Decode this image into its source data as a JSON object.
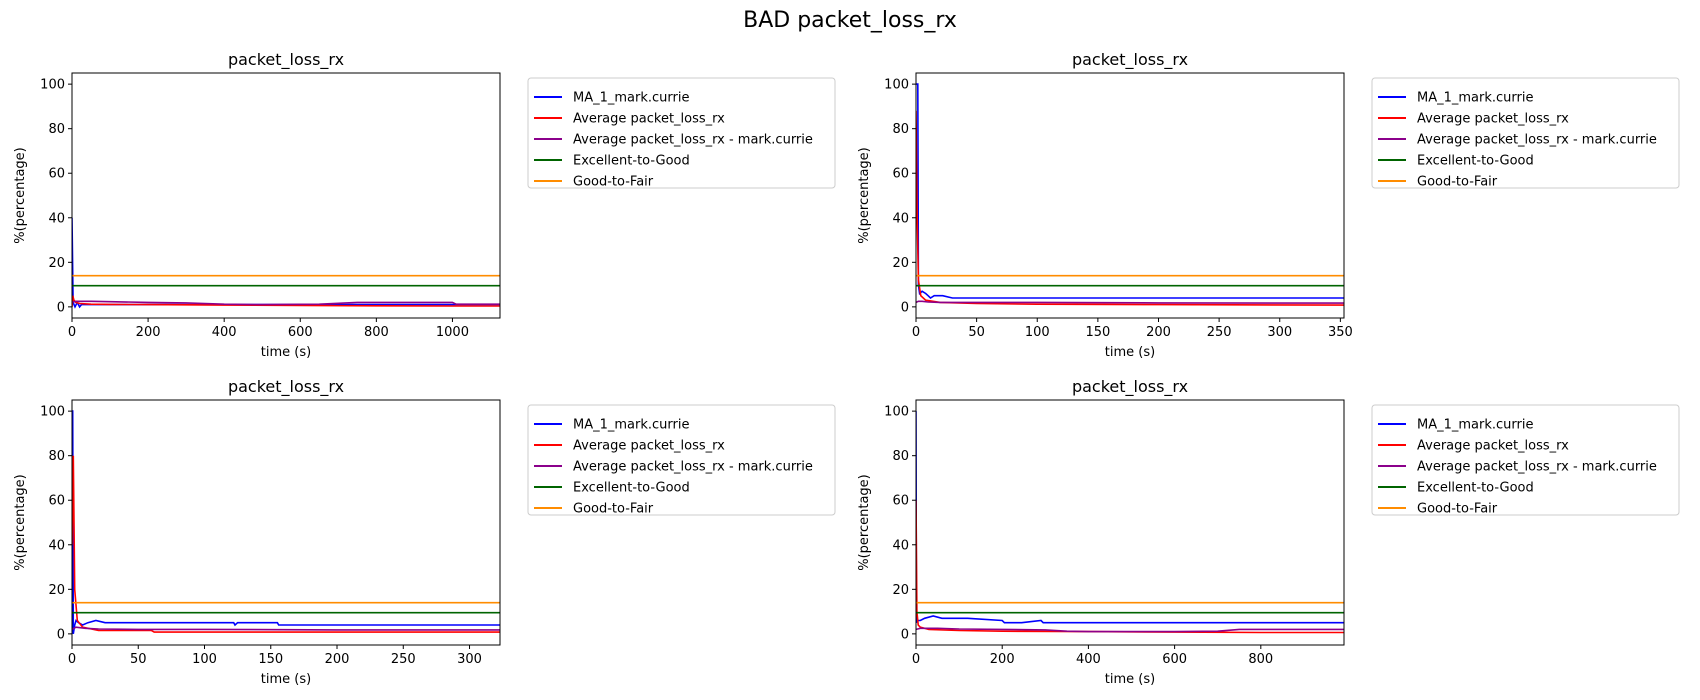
{
  "suptitle": "BAD packet_loss_rx",
  "colors": {
    "ma": "#0000ff",
    "avg": "#ff0000",
    "avg_user": "#8b008b",
    "excellent_good": "#006400",
    "good_fair": "#ff8c00"
  },
  "chart_data": [
    {
      "type": "line",
      "title": "packet_loss_rx",
      "xlabel": "time (s)",
      "ylabel": "%(percentage)",
      "xlim": [
        0,
        1125
      ],
      "ylim": [
        -5,
        105
      ],
      "xticks": [
        0,
        200,
        400,
        600,
        800,
        1000
      ],
      "yticks": [
        0,
        20,
        40,
        60,
        80,
        100
      ],
      "grid": false,
      "legend_position": "outside-right",
      "series": [
        {
          "name": "MA_1_mark.currie",
          "color_key": "ma",
          "x": [
            0,
            3,
            8,
            14,
            20,
            25,
            30,
            1125
          ],
          "y": [
            40,
            2,
            0,
            2,
            0,
            1,
            1,
            1
          ]
        },
        {
          "name": "Average packet_loss_rx",
          "color_key": "avg",
          "x": [
            0,
            2,
            5,
            10,
            20,
            50,
            100,
            200,
            400,
            600,
            800,
            1000,
            1125
          ],
          "y": [
            0,
            5,
            3,
            2,
            1.5,
            1.2,
            1.1,
            1.0,
            0.8,
            0.6,
            0.5,
            0.4,
            0.4
          ]
        },
        {
          "name": "Average packet_loss_rx - mark.currie",
          "color_key": "avg_user",
          "x": [
            0,
            10,
            50,
            100,
            200,
            300,
            350,
            400,
            500,
            650,
            700,
            750,
            800,
            1000,
            1010,
            1125
          ],
          "y": [
            2,
            2.5,
            2.5,
            2.3,
            2.0,
            1.8,
            1.5,
            1.2,
            1.0,
            1.2,
            1.6,
            2.0,
            2.0,
            2.0,
            1.2,
            1.2
          ]
        },
        {
          "name": "Excellent-to-Good",
          "color_key": "excellent_good",
          "x": [
            0,
            1125
          ],
          "y": [
            9.5,
            9.5
          ]
        },
        {
          "name": "Good-to-Fair",
          "color_key": "good_fair",
          "x": [
            0,
            1125
          ],
          "y": [
            14,
            14
          ]
        }
      ]
    },
    {
      "type": "line",
      "title": "packet_loss_rx",
      "xlabel": "time (s)",
      "ylabel": "%(percentage)",
      "xlim": [
        0,
        353
      ],
      "ylim": [
        -5,
        105
      ],
      "xticks": [
        0,
        50,
        100,
        150,
        200,
        250,
        300,
        350
      ],
      "yticks": [
        0,
        20,
        40,
        60,
        80,
        100
      ],
      "grid": false,
      "legend_position": "outside-right",
      "series": [
        {
          "name": "MA_1_mark.currie",
          "color_key": "ma",
          "x": [
            0,
            0.5,
            1.5,
            2,
            3,
            5,
            8,
            10,
            12,
            15,
            20,
            22,
            30,
            353
          ],
          "y": [
            100,
            100,
            100,
            10,
            6,
            7,
            6,
            5,
            4,
            5,
            5,
            5,
            4,
            4
          ]
        },
        {
          "name": "Average packet_loss_rx",
          "color_key": "avg",
          "x": [
            0,
            1,
            2,
            4,
            8,
            20,
            50,
            100,
            200,
            353
          ],
          "y": [
            88,
            40,
            12,
            5,
            3,
            2,
            1.5,
            1.2,
            1.0,
            0.8
          ]
        },
        {
          "name": "Average packet_loss_rx - mark.currie",
          "color_key": "avg_user",
          "x": [
            0,
            2,
            5,
            10,
            20,
            50,
            100,
            200,
            353
          ],
          "y": [
            2,
            2.5,
            2.5,
            2.2,
            2.0,
            2.0,
            2.0,
            1.8,
            1.7
          ]
        },
        {
          "name": "Excellent-to-Good",
          "color_key": "excellent_good",
          "x": [
            0,
            353
          ],
          "y": [
            9.5,
            9.5
          ]
        },
        {
          "name": "Good-to-Fair",
          "color_key": "good_fair",
          "x": [
            0,
            353
          ],
          "y": [
            14,
            14
          ]
        }
      ]
    },
    {
      "type": "line",
      "title": "packet_loss_rx",
      "xlabel": "time (s)",
      "ylabel": "%(percentage)",
      "xlim": [
        0,
        323
      ],
      "ylim": [
        -5,
        105
      ],
      "xticks": [
        0,
        50,
        100,
        150,
        200,
        250,
        300
      ],
      "yticks": [
        0,
        20,
        40,
        60,
        80,
        100
      ],
      "grid": false,
      "legend_position": "outside-right",
      "series": [
        {
          "name": "MA_1_mark.currie",
          "color_key": "ma",
          "x": [
            0,
            0.5,
            1,
            2,
            3,
            5,
            8,
            12,
            18,
            25,
            122,
            123,
            125,
            155,
            156,
            323
          ],
          "y": [
            100,
            100,
            0,
            4,
            6,
            5,
            4,
            5,
            6,
            5,
            5,
            4,
            5,
            5,
            4,
            4
          ]
        },
        {
          "name": "Average packet_loss_rx",
          "color_key": "avg",
          "x": [
            0,
            1,
            2,
            4,
            8,
            20,
            60,
            62,
            323
          ],
          "y": [
            40,
            80,
            20,
            6,
            3,
            1.5,
            1.5,
            0.8,
            0.8
          ]
        },
        {
          "name": "Average packet_loss_rx - mark.currie",
          "color_key": "avg_user",
          "x": [
            0,
            3,
            10,
            20,
            50,
            100,
            200,
            323
          ],
          "y": [
            2,
            3,
            2.5,
            2.2,
            2.0,
            2.0,
            1.8,
            1.8
          ]
        },
        {
          "name": "Excellent-to-Good",
          "color_key": "excellent_good",
          "x": [
            0,
            323
          ],
          "y": [
            9.5,
            9.5
          ]
        },
        {
          "name": "Good-to-Fair",
          "color_key": "good_fair",
          "x": [
            0,
            323
          ],
          "y": [
            14,
            14
          ]
        }
      ]
    },
    {
      "type": "line",
      "title": "packet_loss_rx",
      "xlabel": "time (s)",
      "ylabel": "%(percentage)",
      "xlim": [
        0,
        993
      ],
      "ylim": [
        -5,
        105
      ],
      "xticks": [
        0,
        200,
        400,
        600,
        800
      ],
      "yticks": [
        0,
        20,
        40,
        60,
        80,
        100
      ],
      "grid": false,
      "legend_position": "outside-right",
      "series": [
        {
          "name": "MA_1_mark.currie",
          "color_key": "ma",
          "x": [
            0,
            1,
            3,
            10,
            20,
            40,
            60,
            120,
            200,
            205,
            245,
            290,
            295,
            300,
            993
          ],
          "y": [
            100,
            5,
            6,
            6,
            7,
            8,
            7,
            7,
            6,
            5,
            5,
            6,
            5,
            5,
            5
          ]
        },
        {
          "name": "Average packet_loss_rx",
          "color_key": "avg",
          "x": [
            0,
            2,
            5,
            10,
            30,
            100,
            200,
            400,
            600,
            800,
            993
          ],
          "y": [
            60,
            10,
            4,
            3,
            2,
            1.5,
            1.2,
            1.0,
            0.8,
            0.6,
            0.6
          ]
        },
        {
          "name": "Average packet_loss_rx - mark.currie",
          "color_key": "avg_user",
          "x": [
            0,
            10,
            50,
            100,
            200,
            300,
            350,
            400,
            500,
            600,
            700,
            750,
            993
          ],
          "y": [
            2,
            2.5,
            2.5,
            2.2,
            2.0,
            1.8,
            1.2,
            1.0,
            1.0,
            1.0,
            1.2,
            2.0,
            2.0
          ]
        },
        {
          "name": "Excellent-to-Good",
          "color_key": "excellent_good",
          "x": [
            0,
            993
          ],
          "y": [
            9.5,
            9.5
          ]
        },
        {
          "name": "Good-to-Fair",
          "color_key": "good_fair",
          "x": [
            0,
            993
          ],
          "y": [
            14,
            14
          ]
        }
      ]
    }
  ]
}
